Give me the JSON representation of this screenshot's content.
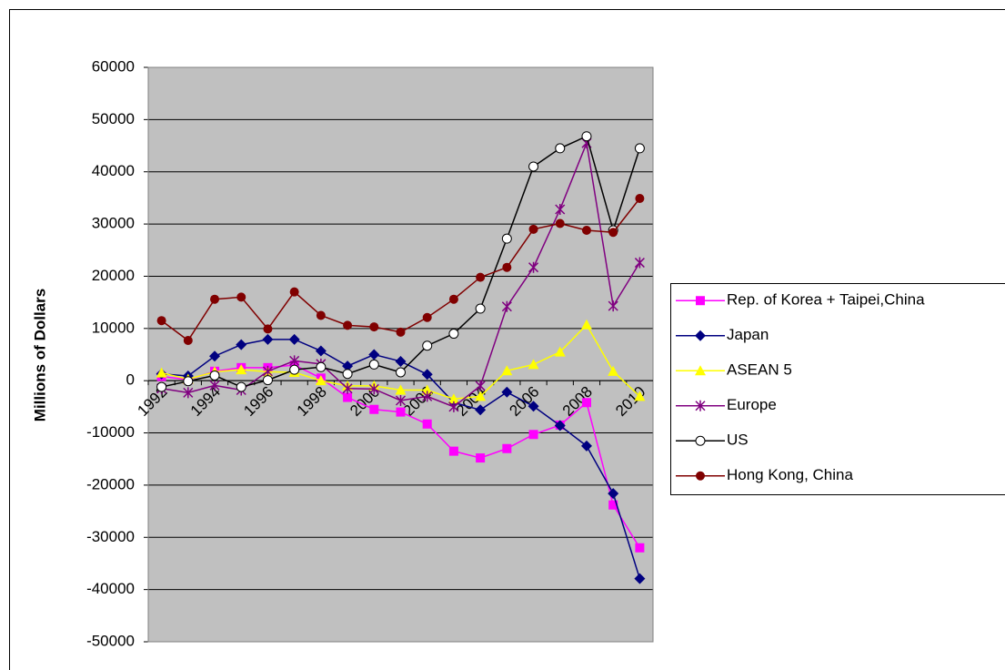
{
  "chart_data": {
    "type": "line",
    "y_label": "Millions of Dollars",
    "categories": [
      "1992",
      null,
      "1994",
      null,
      "1996",
      null,
      "1998",
      null,
      "2000",
      null,
      "2002",
      null,
      "2004",
      null,
      "2006",
      null,
      "2008",
      null,
      "2010"
    ],
    "ylim": [
      -50000,
      60000
    ],
    "yticks": [
      -50000,
      -40000,
      -30000,
      -20000,
      -10000,
      0,
      10000,
      20000,
      30000,
      40000,
      50000,
      60000
    ],
    "grid": true,
    "legend": "right",
    "background": "#c0c0c0",
    "series": [
      {
        "name": "Rep. of Korea + Taipei,China",
        "color": "#ff00ff",
        "marker": "square",
        "values": [
          800,
          200,
          1800,
          2500,
          2500,
          3000,
          500,
          -3200,
          -5500,
          -6000,
          -8300,
          -13500,
          -14800,
          -13000,
          -10300,
          -8500,
          -4200,
          -23800,
          -32000
        ]
      },
      {
        "name": "Japan",
        "color": "#000080",
        "marker": "diamond",
        "values": [
          1300,
          900,
          4700,
          6900,
          7900,
          7900,
          5700,
          2800,
          5000,
          3700,
          1200,
          -4200,
          -5600,
          -2200,
          -4900,
          -8600,
          -12500,
          -21600,
          -37900
        ]
      },
      {
        "name": "ASEAN 5",
        "color": "#ffff00",
        "marker": "triangle",
        "values": [
          1500,
          300,
          1700,
          2100,
          1700,
          1600,
          0,
          -1000,
          -1000,
          -1800,
          -1800,
          -3500,
          -3000,
          1900,
          3100,
          5500,
          10700,
          1800,
          -3000
        ]
      },
      {
        "name": "Europe",
        "color": "#800080",
        "marker": "star",
        "values": [
          -1500,
          -2300,
          -900,
          -1800,
          1800,
          3800,
          3200,
          -1500,
          -1600,
          -3800,
          -3000,
          -5000,
          -1000,
          14200,
          21700,
          32800,
          45500,
          14300,
          22600
        ]
      },
      {
        "name": "US",
        "color": "#000000",
        "marker": "open-circle",
        "values": [
          -1200,
          -100,
          1000,
          -1200,
          100,
          2100,
          2600,
          1300,
          3100,
          1600,
          6700,
          9000,
          13800,
          27200,
          41000,
          44500,
          46800,
          28800,
          44500
        ]
      },
      {
        "name": "Hong Kong, China",
        "color": "#800000",
        "marker": "circle",
        "values": [
          11500,
          7700,
          15600,
          16000,
          9900,
          17000,
          12500,
          10600,
          10300,
          9300,
          12100,
          15600,
          19800,
          21700,
          29000,
          30100,
          28800,
          28400,
          34900
        ]
      }
    ]
  }
}
